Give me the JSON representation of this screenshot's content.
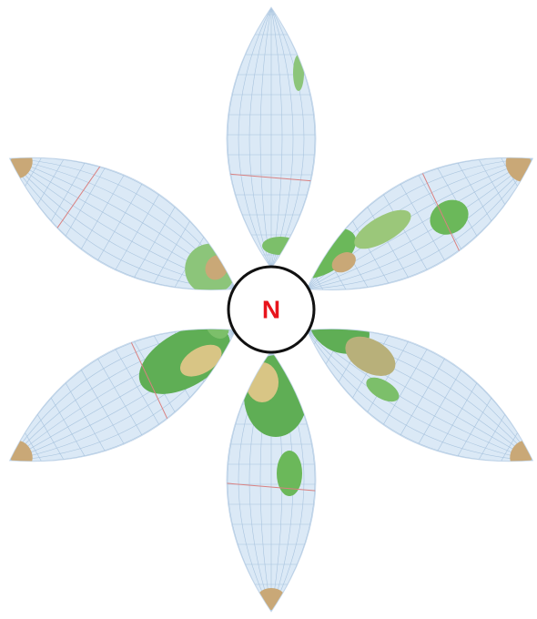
{
  "center_label": "N"
}
